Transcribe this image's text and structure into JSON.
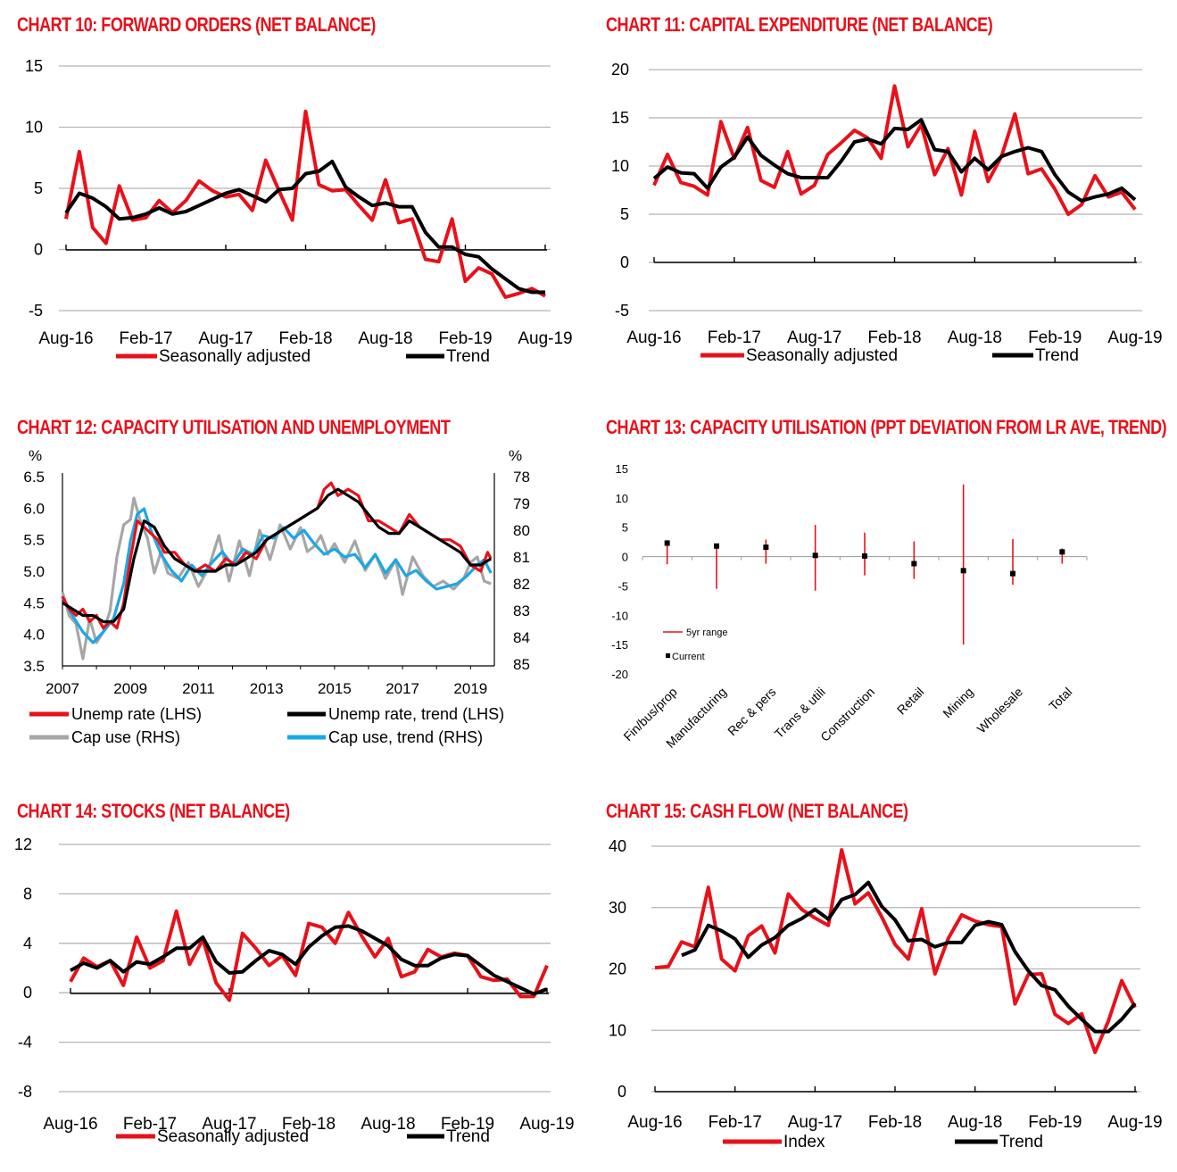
{
  "colors": {
    "red": "#e8111a",
    "black": "#000000",
    "grey": "#a6a6a6",
    "blue": "#1aa7e6",
    "grid": "#b5b5b5"
  },
  "chart_data": [
    {
      "type": "line",
      "title": "CHART 10: FORWARD ORDERS (NET BALANCE)",
      "ylim": [
        -5,
        15
      ],
      "yticks": [
        "15",
        "10",
        "5",
        "0",
        "-5"
      ],
      "xticks": [
        "Aug-16",
        "Feb-17",
        "Aug-17",
        "Feb-18",
        "Aug-18",
        "Feb-19",
        "Aug-19"
      ],
      "x_range": [
        0,
        36
      ],
      "series": [
        {
          "name": "Seasonally adjusted",
          "color": "red",
          "values": [
            2.5,
            8,
            1.8,
            0.5,
            5.2,
            2.4,
            2.6,
            4,
            3,
            4,
            5.6,
            4.8,
            4.3,
            4.5,
            3.2,
            7.3,
            4.8,
            2.4,
            11.3,
            5.3,
            4.8,
            4.9,
            3.6,
            2.4,
            5.7,
            2.2,
            2.5,
            -0.8,
            -1,
            2.5,
            -2.6,
            -1.5,
            -2,
            -3.9,
            -3.6,
            -3.2,
            -3.8
          ]
        },
        {
          "name": "Trend",
          "color": "black",
          "values": [
            3,
            4.6,
            4.2,
            3.5,
            2.5,
            2.6,
            2.9,
            3.4,
            2.9,
            3.1,
            3.6,
            4.1,
            4.6,
            4.9,
            4.4,
            3.9,
            4.9,
            5,
            6.2,
            6.4,
            7.2,
            5.1,
            4.3,
            3.6,
            3.8,
            3.5,
            3.5,
            1.4,
            0.2,
            0.2,
            -0.4,
            -0.6,
            -1.6,
            -2.4,
            -3.2,
            -3.5,
            -3.5
          ]
        }
      ],
      "legend": [
        "Seasonally adjusted",
        "Trend"
      ]
    },
    {
      "type": "line",
      "title": "CHART 11: CAPITAL EXPENDITURE (NET BALANCE)",
      "ylim": [
        -5,
        20
      ],
      "yticks": [
        "20",
        "15",
        "10",
        "5",
        "0",
        "-5"
      ],
      "xticks": [
        "Aug-16",
        "Feb-17",
        "Aug-17",
        "Feb-18",
        "Aug-18",
        "Feb-19",
        "Aug-19"
      ],
      "x_range": [
        0,
        36
      ],
      "series": [
        {
          "name": "Seasonally adjusted",
          "color": "red",
          "values": [
            8,
            11.2,
            8.3,
            7.9,
            7,
            14.6,
            10.8,
            14,
            8.5,
            7.8,
            11.5,
            7.1,
            8,
            11.2,
            12.4,
            13.7,
            12.9,
            10.8,
            18.3,
            12,
            14.3,
            9.1,
            11.8,
            7,
            13.6,
            8.4,
            11,
            15.4,
            9.2,
            9.7,
            7.6,
            5,
            6,
            9,
            6.8,
            7.3,
            5.5
          ]
        },
        {
          "name": "Trend",
          "color": "black",
          "values": [
            8.7,
            9.9,
            9.3,
            9.2,
            7.7,
            9.9,
            10.9,
            13,
            11.1,
            10.1,
            9.2,
            8.8,
            8.8,
            8.8,
            10.5,
            12.5,
            12.8,
            12.3,
            13.9,
            13.8,
            14.8,
            11.7,
            11.5,
            9.4,
            10.8,
            9.6,
            11,
            11.5,
            11.9,
            11.5,
            9.1,
            7.3,
            6.4,
            6.8,
            7.1,
            7.7,
            6.5
          ]
        }
      ],
      "legend": [
        "Seasonally adjusted",
        "Trend"
      ]
    },
    {
      "type": "line",
      "title": "CHART 12: CAPACITY UTILISATION AND UNEMPLOYMENT",
      "y_left_unit": "%",
      "y_right_unit": "%",
      "ylim_left": [
        3.5,
        6.5
      ],
      "ylim_right_inverted": [
        78,
        85
      ],
      "yticks_left": [
        "6.5",
        "6.0",
        "5.5",
        "5.0",
        "4.5",
        "4.0",
        "3.5"
      ],
      "yticks_right": [
        "78",
        "79",
        "80",
        "81",
        "82",
        "83",
        "84",
        "85"
      ],
      "xticks": [
        "2007",
        "2009",
        "2011",
        "2013",
        "2015",
        "2017",
        "2019"
      ],
      "xlim": [
        2007,
        2019.7
      ],
      "series": [
        {
          "name": "Cap use (RHS)",
          "color": "grey",
          "axis": "right",
          "x": [
            2007,
            2007.2,
            2007.4,
            2007.6,
            2007.8,
            2008.0,
            2008.2,
            2008.4,
            2008.6,
            2008.8,
            2009.0,
            2009.1,
            2009.3,
            2009.5,
            2009.7,
            2009.9,
            2010.1,
            2010.4,
            2010.7,
            2011.0,
            2011.3,
            2011.6,
            2011.9,
            2012.2,
            2012.5,
            2012.8,
            2013.1,
            2013.4,
            2013.7,
            2014.0,
            2014.2,
            2014.4,
            2014.6,
            2014.8,
            2015.0,
            2015.3,
            2015.6,
            2015.9,
            2016.2,
            2016.5,
            2016.8,
            2017.0,
            2017.3,
            2017.6,
            2017.9,
            2018.2,
            2018.5,
            2018.8,
            2019.0,
            2019.2,
            2019.4,
            2019.6
          ],
          "values": [
            82.3,
            83.2,
            83.5,
            84.8,
            83.3,
            84.2,
            83.8,
            83.0,
            81.0,
            79.8,
            79.6,
            78.8,
            79.7,
            80.3,
            81.6,
            80.8,
            81.6,
            81.8,
            81.2,
            82.1,
            81.4,
            80.2,
            81.9,
            80.4,
            81.7,
            80.0,
            81.1,
            79.8,
            80.7,
            79.9,
            80.8,
            80.6,
            80.2,
            80.9,
            80.5,
            81.2,
            80.4,
            81.5,
            80.9,
            81.8,
            81.1,
            82.4,
            81.0,
            81.7,
            82.1,
            81.9,
            82.2,
            81.8,
            81.2,
            81.0,
            81.9,
            82.0
          ]
        },
        {
          "name": "Cap use, trend (RHS)",
          "color": "blue",
          "axis": "right",
          "x": [
            2007,
            2007.3,
            2007.6,
            2007.9,
            2008.2,
            2008.5,
            2008.8,
            2009.0,
            2009.2,
            2009.4,
            2009.6,
            2009.9,
            2010.2,
            2010.5,
            2010.8,
            2011.1,
            2011.4,
            2011.7,
            2012.0,
            2012.3,
            2012.6,
            2012.9,
            2013.2,
            2013.5,
            2013.8,
            2014.1,
            2014.4,
            2014.7,
            2015.0,
            2015.3,
            2015.6,
            2015.9,
            2016.2,
            2016.5,
            2016.8,
            2017.1,
            2017.4,
            2017.7,
            2018.0,
            2018.3,
            2018.6,
            2018.9,
            2019.2,
            2019.4,
            2019.6
          ],
          "values": [
            82.5,
            83.2,
            83.8,
            84.2,
            83.8,
            83.3,
            82.0,
            80.4,
            79.4,
            79.2,
            80.0,
            80.9,
            81.5,
            81.9,
            81.3,
            81.7,
            81.2,
            80.8,
            81.3,
            80.7,
            80.9,
            80.2,
            80.3,
            79.9,
            80.3,
            80.0,
            80.5,
            80.9,
            80.7,
            81.0,
            80.9,
            81.4,
            80.9,
            81.6,
            81.1,
            81.7,
            81.5,
            81.9,
            82.2,
            82.1,
            82.0,
            81.7,
            81.3,
            81.1,
            81.6
          ]
        },
        {
          "name": "Unemp rate (LHS)",
          "color": "red",
          "axis": "left",
          "x": [
            2007,
            2007.2,
            2007.4,
            2007.6,
            2007.8,
            2008.0,
            2008.2,
            2008.4,
            2008.6,
            2008.8,
            2009.0,
            2009.2,
            2009.4,
            2009.6,
            2009.8,
            2010.0,
            2010.3,
            2010.6,
            2010.9,
            2011.2,
            2011.5,
            2011.8,
            2012.1,
            2012.4,
            2012.7,
            2013.0,
            2013.3,
            2013.6,
            2013.9,
            2014.2,
            2014.5,
            2014.7,
            2014.9,
            2015.1,
            2015.4,
            2015.7,
            2016.0,
            2016.3,
            2016.6,
            2016.9,
            2017.2,
            2017.5,
            2017.8,
            2018.1,
            2018.4,
            2018.7,
            2019.0,
            2019.3,
            2019.5,
            2019.6
          ],
          "values": [
            4.6,
            4.4,
            4.3,
            4.4,
            4.2,
            4.3,
            4.1,
            4.2,
            4.1,
            4.5,
            5.2,
            5.8,
            5.7,
            5.6,
            5.5,
            5.3,
            5.3,
            5.1,
            5.0,
            5.1,
            5.0,
            5.2,
            5.1,
            5.3,
            5.2,
            5.5,
            5.6,
            5.7,
            5.8,
            5.9,
            6.0,
            6.3,
            6.4,
            6.2,
            6.3,
            6.2,
            5.8,
            5.8,
            5.7,
            5.6,
            5.9,
            5.7,
            5.6,
            5.5,
            5.5,
            5.4,
            5.1,
            5.0,
            5.3,
            5.2
          ]
        },
        {
          "name": "Unemp rate, trend (LHS)",
          "color": "black",
          "axis": "left",
          "x": [
            2007,
            2007.3,
            2007.6,
            2007.9,
            2008.2,
            2008.5,
            2008.8,
            2009.1,
            2009.4,
            2009.7,
            2010.0,
            2010.3,
            2010.6,
            2010.9,
            2011.2,
            2011.5,
            2011.8,
            2012.1,
            2012.4,
            2012.7,
            2013.0,
            2013.3,
            2013.6,
            2013.9,
            2014.2,
            2014.5,
            2014.8,
            2015.1,
            2015.4,
            2015.7,
            2016.0,
            2016.3,
            2016.6,
            2016.9,
            2017.2,
            2017.5,
            2017.8,
            2018.1,
            2018.4,
            2018.7,
            2019.0,
            2019.3,
            2019.6
          ],
          "values": [
            4.5,
            4.4,
            4.3,
            4.3,
            4.2,
            4.2,
            4.4,
            5.2,
            5.8,
            5.7,
            5.4,
            5.2,
            5.1,
            5.0,
            5.0,
            5.0,
            5.1,
            5.1,
            5.2,
            5.3,
            5.5,
            5.6,
            5.7,
            5.8,
            5.9,
            6.0,
            6.2,
            6.3,
            6.2,
            6.1,
            5.9,
            5.7,
            5.6,
            5.6,
            5.8,
            5.7,
            5.6,
            5.5,
            5.4,
            5.3,
            5.1,
            5.1,
            5.2
          ]
        }
      ],
      "legend": [
        "Unemp rate (LHS)",
        "Unemp rate, trend (LHS)",
        "Cap use (RHS)",
        "Cap use, trend (RHS)"
      ]
    },
    {
      "type": "range",
      "title": "CHART 13: CAPACITY UTILISATION (PPT DEVIATION FROM LR AVE, TREND)",
      "ylim": [
        -20,
        15
      ],
      "yticks": [
        "15",
        "10",
        "5",
        "0",
        "-5",
        "-10",
        "-15",
        "-20"
      ],
      "categories": [
        "Fin/bus/prop",
        "Manufacturing",
        "Rec & pers",
        "Trans & utili",
        "Construction",
        "Retail",
        "Mining",
        "Wholesale",
        "Total"
      ],
      "range_low": [
        -1.3,
        -5.5,
        -1.2,
        -5.8,
        -3.2,
        -3.8,
        -15,
        -4.8,
        -1.2
      ],
      "range_high": [
        2.8,
        2.2,
        2.9,
        5.4,
        4.1,
        2.6,
        12.3,
        3.0,
        1.4
      ],
      "current": [
        2.3,
        1.8,
        1.6,
        0.2,
        0.1,
        -1.2,
        -2.4,
        -2.9,
        0.8
      ],
      "legend": [
        "5yr range",
        "Current"
      ]
    },
    {
      "type": "line",
      "title": "CHART 14: STOCKS (NET BALANCE)",
      "ylim": [
        -8,
        12
      ],
      "yticks": [
        "12",
        "8",
        "4",
        "0",
        "-4",
        "-8"
      ],
      "xticks": [
        "Aug-16",
        "Feb-17",
        "Aug-17",
        "Feb-18",
        "Aug-18",
        "Feb-19",
        "Aug-19"
      ],
      "x_range": [
        0,
        36
      ],
      "series": [
        {
          "name": "Seasonally adjusted",
          "color": "red",
          "values": [
            0.9,
            2.8,
            2.1,
            2.6,
            0.6,
            4.5,
            2.0,
            2.6,
            6.6,
            2.3,
            4.3,
            0.8,
            -0.6,
            4.8,
            3.6,
            2.2,
            3.0,
            1.4,
            5.6,
            5.3,
            4.0,
            6.5,
            4.6,
            2.9,
            4.4,
            1.3,
            1.7,
            3.5,
            2.9,
            3.2,
            3.0,
            1.3,
            1.0,
            1.1,
            -0.3,
            -0.3,
            2.2
          ]
        },
        {
          "name": "Trend",
          "color": "black",
          "values": [
            1.8,
            2.4,
            2.0,
            2.6,
            1.7,
            2.5,
            2.3,
            2.9,
            3.6,
            3.6,
            4.5,
            2.5,
            1.6,
            1.7,
            2.6,
            3.4,
            3.1,
            2.3,
            3.7,
            4.6,
            5.3,
            5.4,
            5.0,
            4.4,
            3.8,
            2.7,
            2.2,
            2.2,
            2.8,
            3.1,
            3.0,
            2.2,
            1.4,
            0.9,
            0.4,
            -0.1,
            0.3
          ]
        }
      ],
      "legend": [
        "Seasonally adjusted",
        "Trend"
      ]
    },
    {
      "type": "line",
      "title": "CHART 15: CASH FLOW (NET BALANCE)",
      "ylim": [
        0,
        40
      ],
      "yticks": [
        "40",
        "30",
        "20",
        "10",
        "0"
      ],
      "xticks": [
        "Aug-16",
        "Feb-17",
        "Aug-17",
        "Feb-18",
        "Aug-18",
        "Feb-19",
        "Aug-19"
      ],
      "x_range": [
        0,
        36
      ],
      "series": [
        {
          "name": "Index",
          "color": "red",
          "values": [
            20.2,
            20.4,
            24.4,
            23.6,
            33.3,
            21.6,
            19.7,
            25.4,
            27,
            22.6,
            32.2,
            29.7,
            28.3,
            27.1,
            39.4,
            30.6,
            32.4,
            28.5,
            24,
            21.6,
            29.8,
            19.2,
            25,
            28.8,
            27.8,
            27.2,
            26.9,
            14.3,
            19.1,
            19.2,
            12.6,
            11.1,
            12.7,
            6.4,
            11.5,
            18.1,
            13.7
          ]
        },
        {
          "name": "Trend",
          "color": "black",
          "values": [
            null,
            null,
            22.2,
            23.1,
            27.1,
            26.2,
            24.9,
            21.9,
            23.9,
            25.1,
            27.1,
            28.2,
            29.7,
            28.1,
            31.3,
            32.1,
            34.1,
            30.2,
            28,
            24.6,
            24.8,
            23.6,
            24.3,
            24.3,
            27.1,
            27.7,
            27.2,
            22.8,
            19.7,
            17.3,
            16.6,
            13.9,
            11.8,
            9.8,
            9.8,
            11.8,
            14.4
          ]
        }
      ],
      "legend": [
        "Index",
        "Trend"
      ]
    }
  ]
}
